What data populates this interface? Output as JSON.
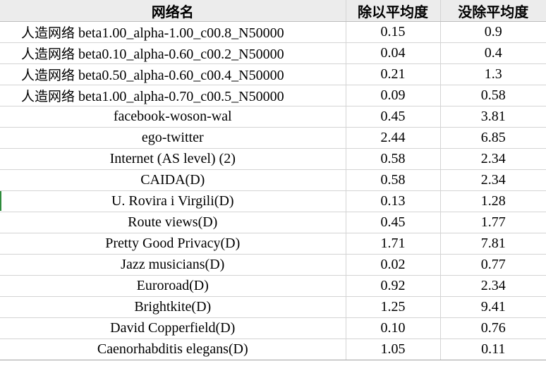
{
  "table": {
    "headers": {
      "name": "网络名",
      "divided": "除以平均度",
      "raw": "没除平均度"
    },
    "rows": [
      {
        "prefix": "人造网络",
        "name": " beta1.00_alpha-1.00_c00.8_N50000",
        "divided": "0.15",
        "raw": "0.9"
      },
      {
        "prefix": "人造网络",
        "name": " beta0.10_alpha-0.60_c00.2_N50000",
        "divided": "0.04",
        "raw": "0.4"
      },
      {
        "prefix": "人造网络",
        "name": " beta0.50_alpha-0.60_c00.4_N50000",
        "divided": "0.21",
        "raw": "1.3"
      },
      {
        "prefix": "人造网络",
        "name": " beta1.00_alpha-0.70_c00.5_N50000",
        "divided": "0.09",
        "raw": "0.58"
      },
      {
        "prefix": "",
        "name": "facebook-woson-wal",
        "divided": "0.45",
        "raw": "3.81"
      },
      {
        "prefix": "",
        "name": "ego-twitter",
        "divided": "2.44",
        "raw": "6.85"
      },
      {
        "prefix": "",
        "name": "Internet (AS level) (2)",
        "divided": "0.58",
        "raw": "2.34"
      },
      {
        "prefix": "",
        "name": "CAIDA(D)",
        "divided": "0.58",
        "raw": "2.34"
      },
      {
        "prefix": "",
        "name": "U. Rovira i Virgili(D)",
        "divided": "0.13",
        "raw": "1.28"
      },
      {
        "prefix": "",
        "name": "Route views(D)",
        "divided": "0.45",
        "raw": "1.77"
      },
      {
        "prefix": "",
        "name": "Pretty Good Privacy(D)",
        "divided": "1.71",
        "raw": "7.81"
      },
      {
        "prefix": "",
        "name": "Jazz musicians(D)",
        "divided": "0.02",
        "raw": "0.77"
      },
      {
        "prefix": "",
        "name": "Euroroad(D)",
        "divided": "0.92",
        "raw": "2.34"
      },
      {
        "prefix": "",
        "name": "Brightkite(D)",
        "divided": "1.25",
        "raw": "9.41"
      },
      {
        "prefix": "",
        "name": "David Copperfield(D)",
        "divided": "0.10",
        "raw": "0.76"
      },
      {
        "prefix": "",
        "name": "Caenorhabditis elegans(D)",
        "divided": "1.05",
        "raw": "0.11"
      }
    ]
  }
}
